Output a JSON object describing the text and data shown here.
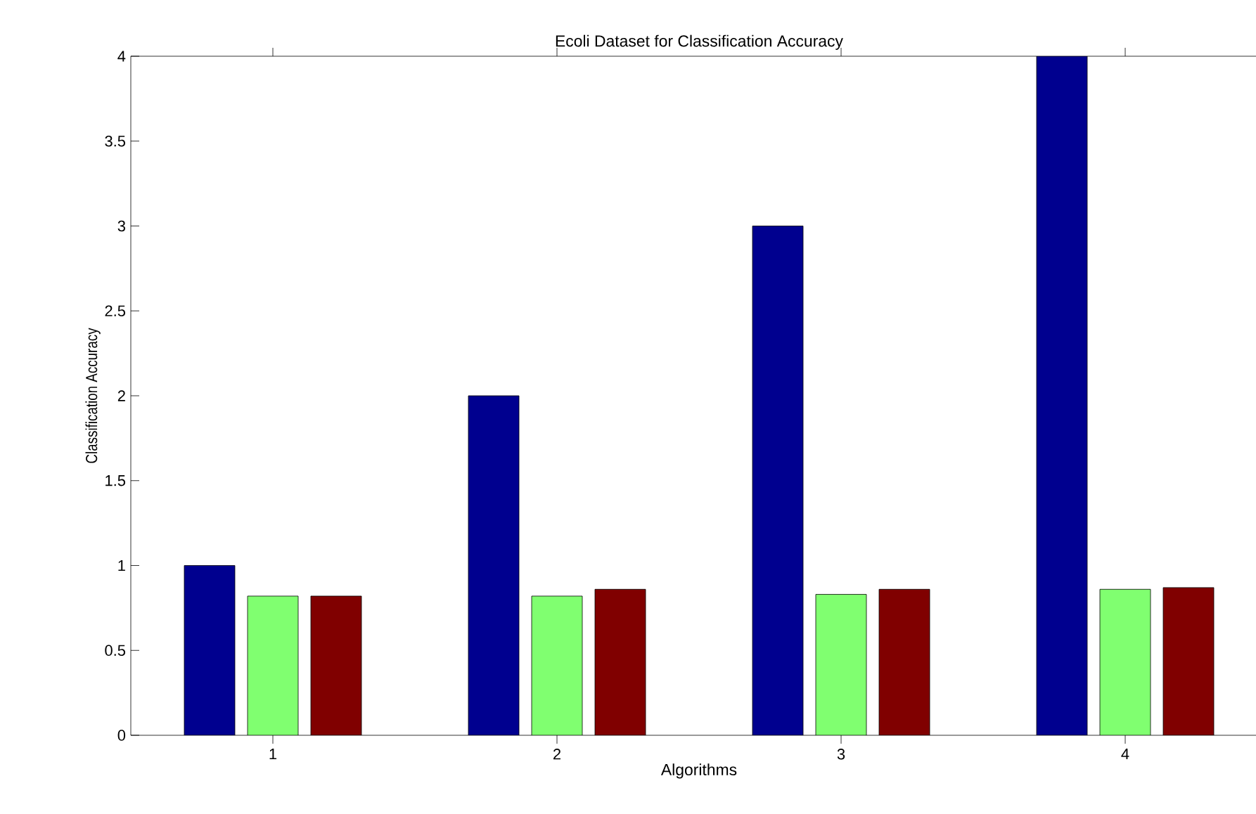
{
  "chart_data": {
    "type": "bar",
    "title": "Ecoli Dataset for Classification Accuracy",
    "xlabel": "Algorithms",
    "ylabel": "Classification Accuracy",
    "categories": [
      "1",
      "2",
      "3",
      "4"
    ],
    "series": [
      {
        "color": "#00008f",
        "values": [
          1,
          2,
          3,
          4
        ]
      },
      {
        "color": "#80ff70",
        "values": [
          0.82,
          0.82,
          0.83,
          0.86
        ]
      },
      {
        "color": "#800000",
        "values": [
          0.82,
          0.86,
          0.86,
          0.87
        ]
      }
    ],
    "ylim": [
      0,
      4
    ],
    "yticks": [
      0,
      0.5,
      1,
      1.5,
      2,
      2.5,
      3,
      3.5,
      4
    ],
    "grid": false
  }
}
